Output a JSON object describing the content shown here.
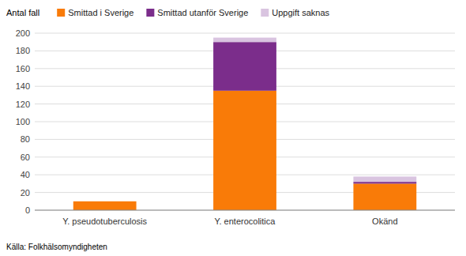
{
  "chart_data": {
    "type": "bar",
    "stacked": true,
    "ylabel": "Antal fall",
    "annotations": [
      "Källa: Folkhälsomyndigheten"
    ],
    "categories": [
      "Y. pseudotuberculosis",
      "Y. enterocolitica",
      "Okänd"
    ],
    "series": [
      {
        "name": "Smittad i Sverige",
        "color": "#F97B08",
        "values": [
          10,
          135,
          30
        ]
      },
      {
        "name": "Smittad utanför Sverige",
        "color": "#7B2D8B",
        "values": [
          0,
          55,
          2
        ]
      },
      {
        "name": "Uppgift saknas",
        "color": "#D9C4E0",
        "values": [
          0,
          5,
          6
        ]
      }
    ],
    "ylim": [
      0,
      200
    ],
    "yticks": [
      0,
      20,
      40,
      60,
      80,
      100,
      120,
      140,
      160,
      180,
      200
    ],
    "grid": true,
    "legend": "upper left"
  }
}
